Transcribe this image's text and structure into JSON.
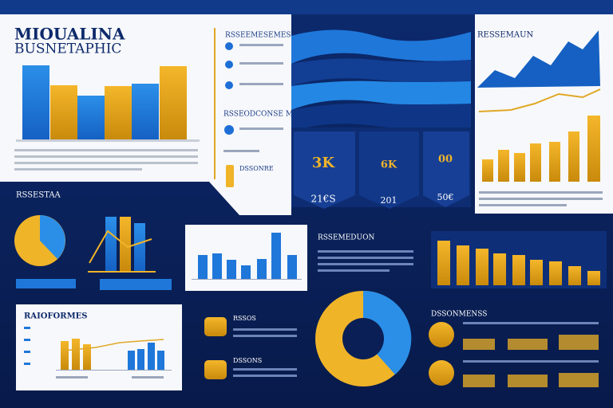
{
  "header": {
    "title_line1": "MIOUALINA",
    "title_line2": "BUSNETAPHIC"
  },
  "list": {
    "title": "RSSEEMESEMES",
    "subtitle": "RSSEODCONSE MSE",
    "tag": "DSSONRE"
  },
  "ribbon": {
    "labels": [
      "3K",
      "6K",
      "00"
    ],
    "footer": [
      "21€S",
      "201",
      "50€"
    ]
  },
  "top_right": {
    "title": "RESSEMAUN"
  },
  "mid_left": {
    "title": "RSSESTAA"
  },
  "center_right": {
    "title": "RSSEMEDUON"
  },
  "bottom_left": {
    "title": "RAIOFORMES"
  },
  "bottom_center": {
    "title_1": "RSSOS",
    "title_2": "DSSONS"
  },
  "bottom_right": {
    "title": "DSSONMENSS"
  }
}
